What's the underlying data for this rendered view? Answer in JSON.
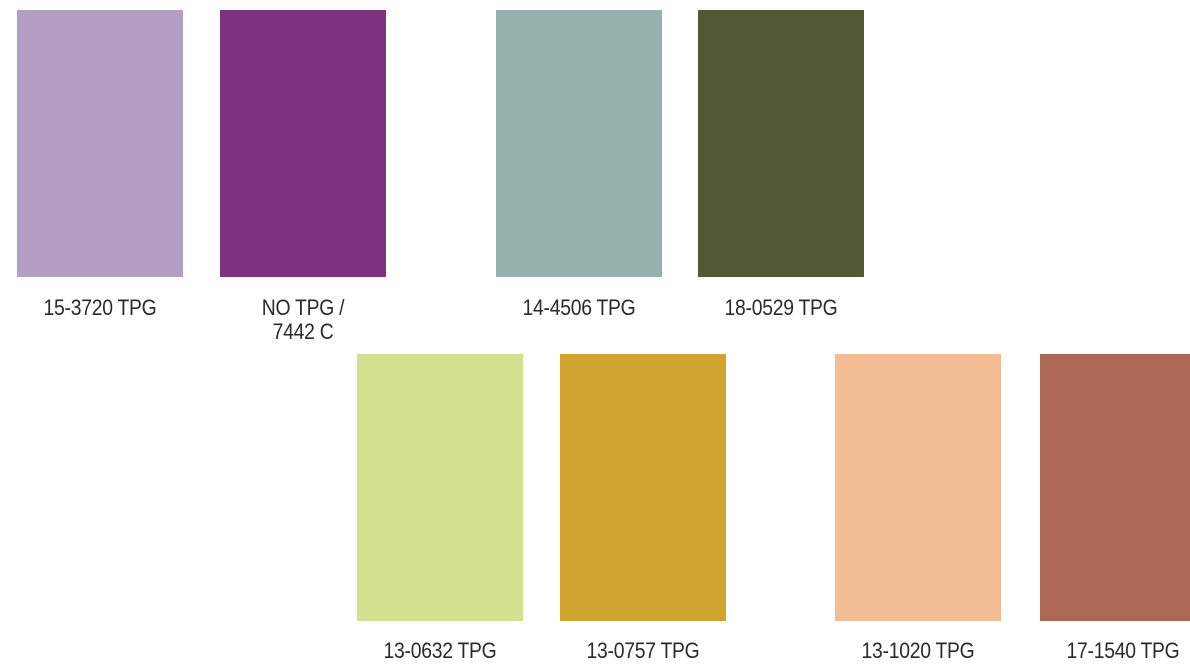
{
  "swatches": [
    {
      "label_lines": [
        "15-3720 TPG"
      ],
      "color": "#b39fc4"
    },
    {
      "label_lines": [
        "NO TPG /",
        "7442 C"
      ],
      "color": "#7e337f"
    },
    {
      "label_lines": [
        "14-4506 TPG"
      ],
      "color": "#97b2ae"
    },
    {
      "label_lines": [
        "18-0529 TPG"
      ],
      "color": "#525937"
    },
    {
      "label_lines": [
        "13-0632 TPG"
      ],
      "color": "#d3e08e"
    },
    {
      "label_lines": [
        "13-0757 TPG"
      ],
      "color": "#d1a430"
    },
    {
      "label_lines": [
        "13-1020 TPG"
      ],
      "color": "#f3bd93"
    },
    {
      "label_lines": [
        "17-1540 TPG"
      ],
      "color": "#ad6955"
    }
  ]
}
